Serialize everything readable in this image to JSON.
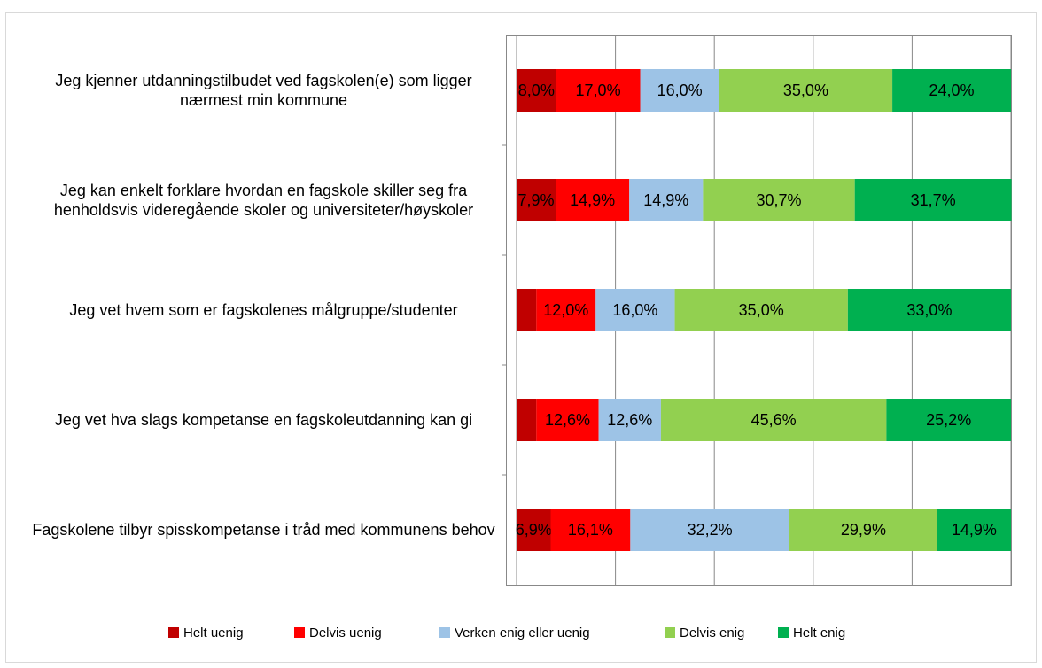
{
  "chart_data": {
    "type": "stacked_barh",
    "categories": [
      "Jeg kjenner utdanningstilbudet ved fagskolen(e) som ligger nærmest min kommune",
      "Jeg kan enkelt forklare hvordan en fagskole skiller seg fra henholdsvis videregående skoler og universiteter/høyskoler",
      "Jeg vet hvem som er fagskolenes målgruppe/studenter",
      "Jeg vet hva slags kompetanse en fagskoleutdanning kan gi",
      "Fagskolene tilbyr spisskompetanse i tråd med kommunens behov"
    ],
    "series": [
      {
        "name": "Helt uenig",
        "color": "#c00000",
        "values": [
          8.0,
          7.9,
          4.0,
          4.0,
          6.9
        ],
        "value_labels": [
          "8,0%",
          "7,9%",
          null,
          null,
          "6,9%"
        ]
      },
      {
        "name": "Delvis uenig",
        "color": "#ff0000",
        "values": [
          17.0,
          14.9,
          12.0,
          12.6,
          16.1
        ],
        "value_labels": [
          "17,0%",
          "14,9%",
          "12,0%",
          "12,6%",
          "16,1%"
        ]
      },
      {
        "name": "Verken enig eller uenig",
        "color": "#9dc3e6",
        "values": [
          16.0,
          14.9,
          16.0,
          12.6,
          32.2
        ],
        "value_labels": [
          "16,0%",
          "14,9%",
          "16,0%",
          "12,6%",
          "32,2%"
        ]
      },
      {
        "name": "Delvis enig",
        "color": "#92d050",
        "values": [
          35.0,
          30.7,
          35.0,
          45.6,
          29.9
        ],
        "value_labels": [
          "35,0%",
          "30,7%",
          "35,0%",
          "45,6%",
          "29,9%"
        ]
      },
      {
        "name": "Helt enig",
        "color": "#00b050",
        "values": [
          24.0,
          31.7,
          33.0,
          25.2,
          14.9
        ],
        "value_labels": [
          "24,0%",
          "31,7%",
          "33,0%",
          "25,2%",
          "14,9%"
        ]
      }
    ],
    "xlim": [
      0,
      100
    ],
    "xticks": [
      0,
      20,
      40,
      60,
      80,
      100
    ],
    "grid": true,
    "legend": "bottom"
  }
}
